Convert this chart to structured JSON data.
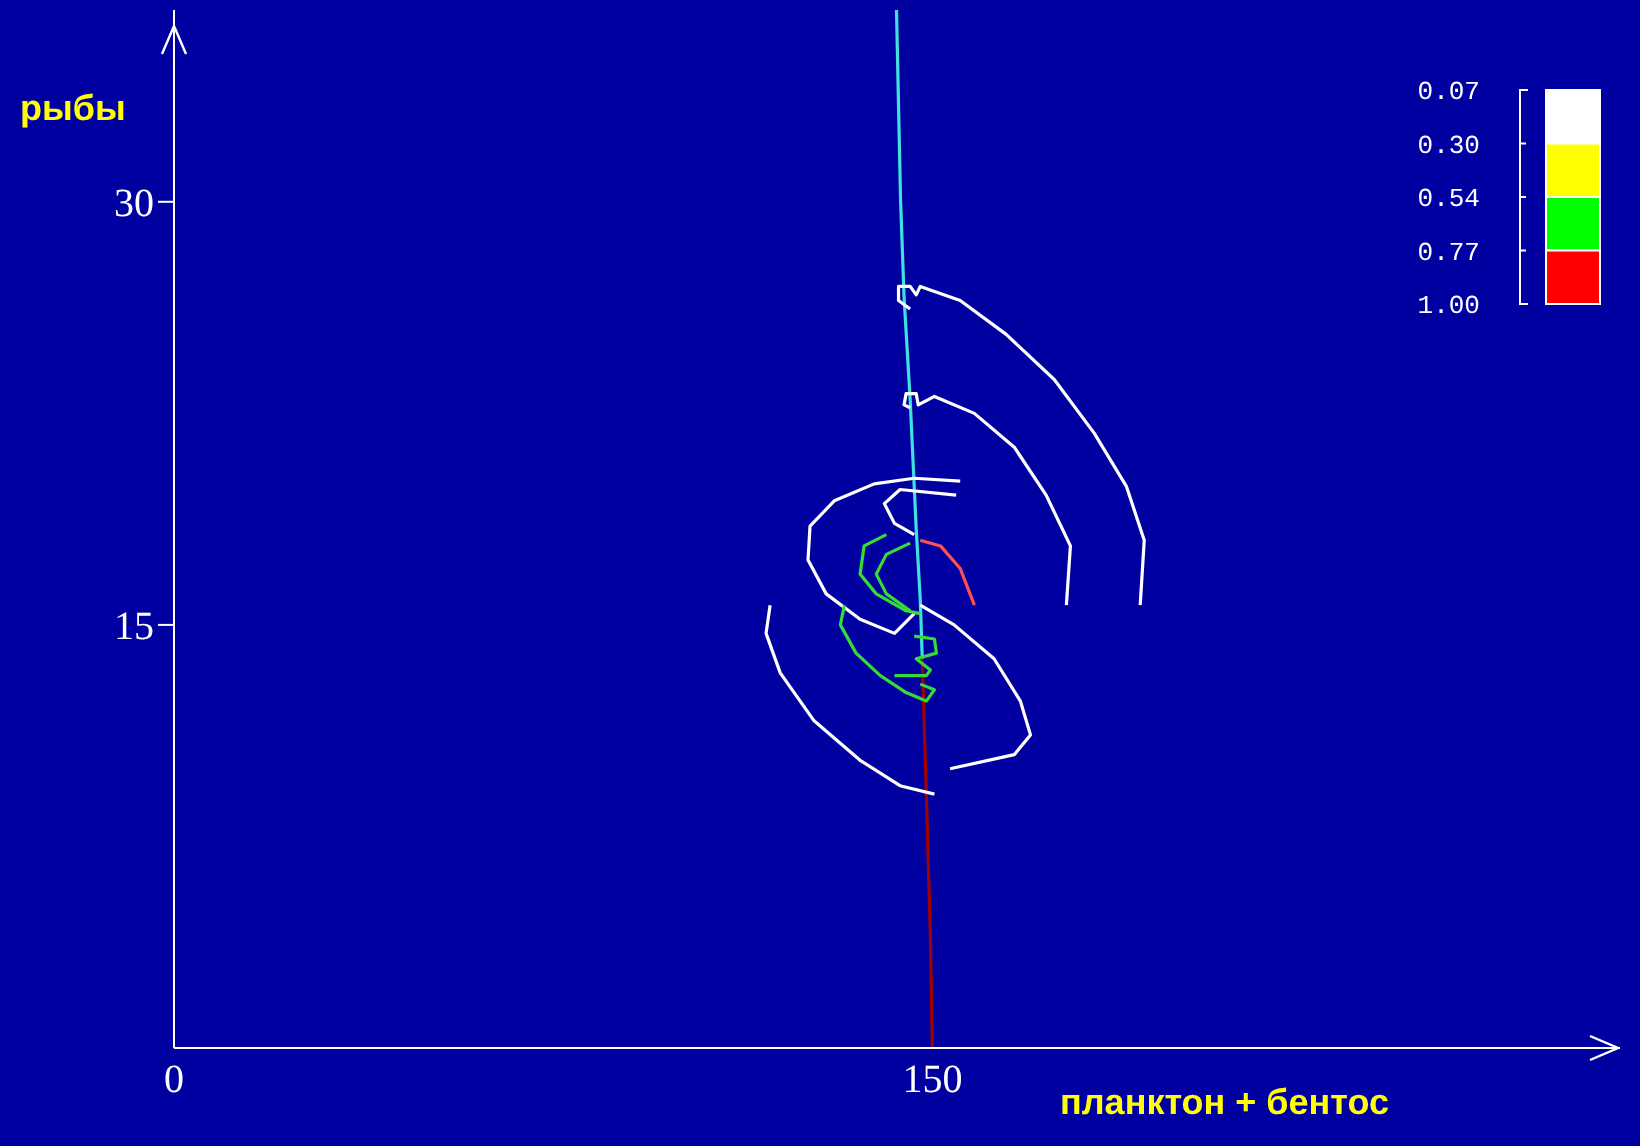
{
  "chart_data": {
    "type": "line",
    "xlabel": "планктон + бентос",
    "ylabel": "рыбы",
    "xlim": [
      0,
      286
    ],
    "ylim": [
      0,
      36.8
    ],
    "xticks": [
      0,
      150
    ],
    "yticks": [
      15,
      30
    ],
    "annotations": [
      "0.07",
      "0.30",
      "0.54",
      "0.77",
      "1.00"
    ],
    "series": [
      {
        "color": "#40e0e0",
        "x": [
          142.9,
          143.7,
          144.4,
          145.6,
          146.8,
          147.6,
          148.0
        ],
        "values": [
          36.8,
          30.1,
          26.6,
          23.0,
          18.4,
          15.9,
          13.8
        ]
      },
      {
        "color": "#a00000",
        "x": [
          148.0,
          148.8,
          149.6,
          150.0
        ],
        "values": [
          13.8,
          9.0,
          4.0,
          0
        ]
      },
      {
        "color": "#ffffff",
        "x": [
          145.6,
          143.3,
          143.3,
          145.6,
          146.8,
          147.6,
          155.5,
          164.6,
          174.1,
          182.0,
          188.4,
          191.9,
          191.1
        ],
        "values": [
          26.2,
          26.5,
          27.0,
          27.0,
          26.7,
          27.0,
          26.5,
          25.3,
          23.7,
          21.8,
          19.9,
          18.0,
          15.7
        ]
      },
      {
        "color": "#ffffff",
        "x": [
          145.6,
          144.4,
          144.8,
          146.8,
          147.2,
          150.4,
          158.3,
          166.2,
          172.5,
          177.3,
          176.5
        ],
        "values": [
          22.7,
          22.8,
          23.2,
          23.2,
          22.8,
          23.1,
          22.5,
          21.3,
          19.6,
          17.8,
          15.7
        ]
      },
      {
        "color": "#ffffff",
        "x": [
          155.5,
          146.4,
          138.5,
          130.6,
          125.8,
          125.4,
          129.0,
          135.7,
          142.5,
          146.4
        ],
        "values": [
          20.1,
          20.2,
          20.0,
          19.4,
          18.5,
          17.3,
          16.1,
          15.2,
          14.7,
          15.4
        ]
      },
      {
        "color": "#ffffff",
        "x": [
          154.7,
          143.6,
          140.5,
          142.5,
          146.4
        ],
        "values": [
          19.6,
          19.8,
          19.3,
          18.6,
          18.2
        ]
      },
      {
        "color": "#ffffff",
        "x": [
          117.9,
          117.1,
          119.9,
          126.6,
          135.7,
          143.6,
          150.4
        ],
        "values": [
          15.7,
          14.7,
          13.3,
          11.6,
          10.2,
          9.3,
          9.0
        ]
      },
      {
        "color": "#ffffff",
        "x": [
          147.6,
          154.3,
          162.2,
          167.4,
          169.4,
          166.2,
          153.5
        ],
        "values": [
          15.7,
          15.0,
          13.8,
          12.3,
          11.1,
          10.4,
          9.9
        ]
      },
      {
        "color": "#33dd33",
        "x": [
          140.9,
          136.5,
          135.7,
          138.9,
          144.8,
          147.6
        ],
        "values": [
          18.2,
          17.8,
          16.8,
          16.1,
          15.5,
          15.4
        ]
      },
      {
        "color": "#33dd33",
        "x": [
          145.6,
          140.9,
          138.9,
          140.9,
          145.6
        ],
        "values": [
          17.9,
          17.5,
          16.8,
          16.1,
          15.5
        ]
      },
      {
        "color": "#33dd33",
        "x": [
          132.6,
          131.8,
          134.9,
          139.7,
          144.8,
          148.8,
          150.4,
          147.6
        ],
        "values": [
          15.7,
          15.0,
          14.0,
          13.2,
          12.6,
          12.3,
          12.7,
          12.9
        ]
      },
      {
        "color": "#33dd33",
        "x": [
          146.4,
          150.4,
          150.8,
          146.8,
          149.6,
          148.8,
          142.5
        ],
        "values": [
          14.6,
          14.5,
          14.0,
          13.8,
          13.4,
          13.2,
          13.2
        ]
      },
      {
        "color": "#ff5050",
        "x": [
          147.6,
          151.6,
          155.5,
          158.3
        ],
        "values": [
          18.0,
          17.8,
          17.0,
          15.7
        ]
      }
    ]
  }
}
